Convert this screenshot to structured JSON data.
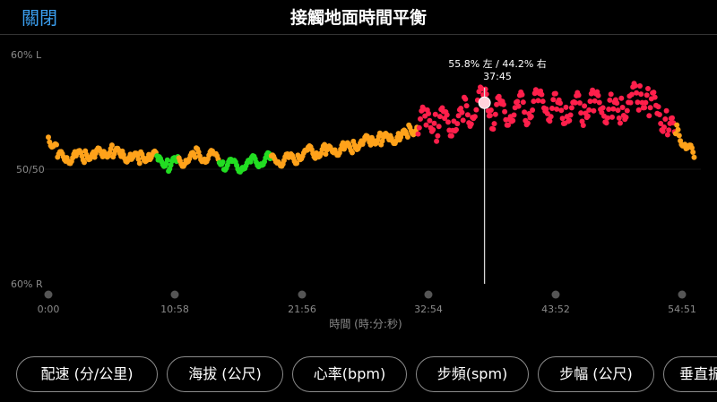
{
  "header": {
    "close_label": "關閉",
    "title": "接觸地面時間平衡"
  },
  "chart_data": {
    "type": "scatter",
    "xlabel": "時間 (時:分:秒)",
    "x_ticks": [
      "0:00",
      "10:58",
      "21:56",
      "32:54",
      "43:52",
      "54:51"
    ],
    "y_ticks": [
      "60% L",
      "50/50",
      "60% R"
    ],
    "ylim": [
      -10,
      10
    ],
    "xlim_minutes": [
      0,
      58.2
    ],
    "tooltip": {
      "label": "55.8% 左 / 44.2% 右",
      "time": "37:45",
      "x_minutes": 37.75,
      "y": 5.8
    },
    "colors": {
      "green": "#22dd22",
      "orange": "#ffa21a",
      "red": "#ff1f4b",
      "cursor": "#d7d7d7",
      "marker": "#ffd3dc"
    },
    "series": [
      {
        "name": "",
        "points": [
          [
            0.0,
            2.8
          ],
          [
            0.8,
            1.3
          ],
          [
            1.6,
            1.1
          ],
          [
            2.4,
            1.3
          ],
          [
            3.2,
            1.2
          ],
          [
            4.0,
            1.1
          ],
          [
            4.8,
            1.3
          ],
          [
            5.6,
            1.6
          ],
          [
            6.4,
            1.4
          ],
          [
            7.2,
            1.2
          ],
          [
            8.0,
            0.9
          ],
          [
            8.8,
            1.1
          ],
          [
            9.6,
            0.7
          ],
          [
            10.4,
            0.5
          ],
          [
            11.2,
            0.8
          ],
          [
            12.0,
            1.0
          ],
          [
            12.8,
            1.2
          ],
          [
            13.6,
            0.9
          ],
          [
            14.4,
            1.0
          ],
          [
            15.2,
            0.6
          ],
          [
            16.0,
            0.5
          ],
          [
            16.8,
            0.4
          ],
          [
            17.6,
            0.5
          ],
          [
            18.4,
            0.6
          ],
          [
            19.2,
            0.8
          ],
          [
            20.0,
            0.9
          ],
          [
            20.8,
            1.0
          ],
          [
            21.6,
            1.2
          ],
          [
            22.4,
            1.4
          ],
          [
            23.2,
            1.3
          ],
          [
            24.0,
            1.5
          ],
          [
            24.8,
            1.8
          ],
          [
            25.6,
            2.0
          ],
          [
            26.4,
            2.1
          ],
          [
            27.2,
            2.2
          ],
          [
            28.0,
            2.4
          ],
          [
            28.8,
            2.6
          ],
          [
            29.6,
            2.8
          ],
          [
            30.4,
            3.0
          ],
          [
            31.2,
            3.3
          ],
          [
            32.0,
            3.6
          ],
          [
            32.8,
            3.9
          ],
          [
            33.6,
            4.0
          ],
          [
            34.4,
            4.4
          ],
          [
            35.2,
            4.6
          ],
          [
            36.0,
            4.7
          ],
          [
            36.8,
            5.0
          ],
          [
            37.75,
            5.8
          ],
          [
            38.4,
            5.0
          ],
          [
            39.2,
            5.3
          ],
          [
            40.0,
            5.5
          ],
          [
            40.8,
            5.2
          ],
          [
            41.6,
            5.0
          ],
          [
            42.4,
            5.4
          ],
          [
            43.2,
            5.8
          ],
          [
            44.0,
            5.4
          ],
          [
            44.8,
            5.6
          ],
          [
            45.6,
            5.2
          ],
          [
            46.4,
            5.0
          ],
          [
            47.2,
            5.3
          ],
          [
            48.0,
            5.6
          ],
          [
            48.8,
            5.4
          ],
          [
            49.6,
            5.6
          ],
          [
            50.4,
            5.9
          ],
          [
            51.2,
            6.1
          ],
          [
            52.0,
            5.6
          ],
          [
            52.8,
            5.1
          ],
          [
            53.6,
            4.4
          ],
          [
            54.4,
            3.4
          ],
          [
            55.2,
            2.0
          ],
          [
            56.0,
            1.0
          ]
        ]
      }
    ]
  },
  "metric_tabs": [
    {
      "label": "配速 (分/公里)"
    },
    {
      "label": "海拔 (公尺)"
    },
    {
      "label": "心率(bpm)"
    },
    {
      "label": "步頻(spm)"
    },
    {
      "label": "步幅 (公尺)"
    },
    {
      "label": "垂直振幅"
    }
  ]
}
